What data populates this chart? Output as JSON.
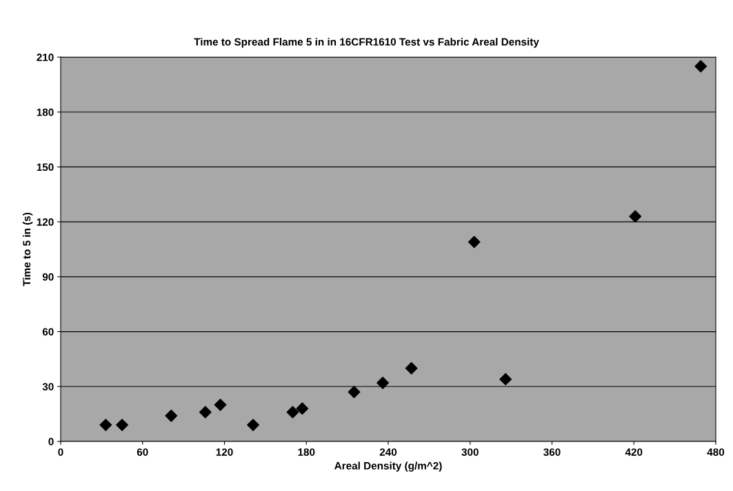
{
  "chart_data": {
    "type": "scatter",
    "title": "Time to Spread Flame 5 in in 16CFR1610 Test vs Fabric Areal Density",
    "xlabel": "Areal Density (g/m^2)",
    "ylabel": "Time to 5 in (s)",
    "x": [
      33,
      45,
      81,
      106,
      117,
      141,
      170,
      177,
      215,
      236,
      257,
      303,
      326,
      421,
      469
    ],
    "values": [
      9,
      9,
      14,
      16,
      20,
      9,
      16,
      18,
      27,
      32,
      40,
      109,
      34,
      123,
      205
    ],
    "color": "#000000",
    "marker": "diamond",
    "xlim": [
      0,
      480
    ],
    "xticks": [
      0,
      60,
      120,
      180,
      240,
      300,
      360,
      420,
      480
    ],
    "ylim": [
      0,
      210
    ],
    "yticks": [
      0,
      30,
      60,
      90,
      120,
      150,
      180,
      210
    ],
    "grid": "y",
    "legend": false
  }
}
